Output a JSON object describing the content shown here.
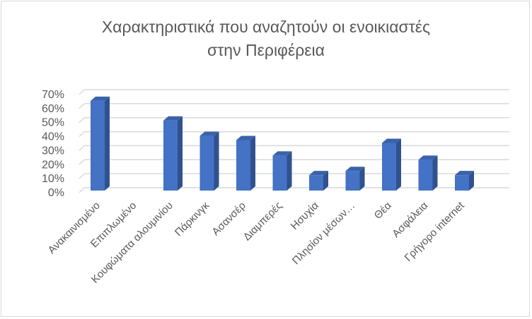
{
  "chart_data": {
    "type": "bar",
    "style": "3d-column",
    "title_lines": [
      "Χαρακτηριστικά που αναζητούν οι ενοικιαστές",
      "στην Περιφέρεια"
    ],
    "categories": [
      "Ανακαινισμένο",
      "Επιπλωμένο",
      "Κουφώματα αλουμινίου",
      "Πάρκινγκ",
      "Ασανσέρ",
      "Διαμπερές",
      "Ησυχία",
      "Πλησίον μέσων…",
      "Θέα",
      "Ασφάλεια",
      "Γρήγορο internet"
    ],
    "values": [
      0.64,
      0,
      0.5,
      0.39,
      0.36,
      0.25,
      0.11,
      0.14,
      0.34,
      0.22,
      0.11
    ],
    "ylim": [
      0,
      0.7
    ],
    "yticks": [
      "0%",
      "10%",
      "20%",
      "30%",
      "40%",
      "50%",
      "60%",
      "70%"
    ],
    "grid": true,
    "legend": "none",
    "colors": {
      "front": "#4472c4",
      "side": "#2f528f",
      "top": "#3a62aa",
      "grid": "#d9d9d9",
      "text": "#595959"
    }
  }
}
